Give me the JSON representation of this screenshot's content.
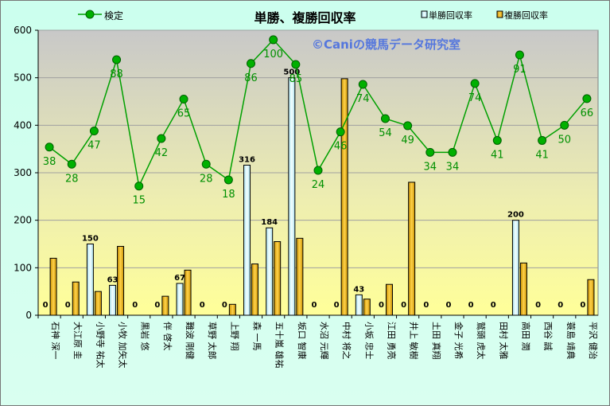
{
  "title": "単勝、複勝回収率",
  "watermark": "©Caniの競馬データ研究室",
  "chart_data": {
    "type": "bar",
    "categories": [
      "石神 深一",
      "大江原 圭",
      "小野寺 祐太",
      "小牧 加矢太",
      "黒岩 悠",
      "伴 啓太",
      "難波 剛健",
      "草野 太郎",
      "上野 翔",
      "森 一馬",
      "五十嵐 雄祐",
      "坂口 智康",
      "水沼 元輝",
      "中村 将之",
      "小坂 忠士",
      "江田 勇亮",
      "井上 敏樹",
      "土田 真翔",
      "金子 光希",
      "鷲頭 虎太",
      "田村 太雅",
      "高田 潤",
      "西谷 誠",
      "蓑島 靖典",
      "平沢 健治"
    ],
    "series": [
      {
        "name": "単勝回収率",
        "type": "bar",
        "color": "#dff6ff",
        "values": [
          0,
          0,
          150,
          63,
          0,
          0,
          67,
          0,
          0,
          316,
          184,
          500,
          0,
          0,
          43,
          0,
          0,
          0,
          0,
          0,
          0,
          200,
          0,
          0,
          0
        ]
      },
      {
        "name": "複勝回収率",
        "type": "bar",
        "color": "#ffc000",
        "values": [
          120,
          70,
          50,
          145,
          0,
          40,
          95,
          0,
          23,
          108,
          155,
          162,
          0,
          498,
          34,
          65,
          280,
          0,
          0,
          0,
          0,
          110,
          0,
          0,
          75
        ]
      },
      {
        "name": "検定",
        "type": "line",
        "color": "#00a000",
        "values": [
          354,
          318,
          388,
          538,
          272,
          372,
          455,
          318,
          285,
          530,
          580,
          528,
          305,
          386,
          486,
          414,
          399,
          343,
          343,
          488,
          368,
          548,
          368,
          400,
          456
        ],
        "labels": [
          38,
          28,
          47,
          88,
          15,
          42,
          65,
          28,
          18,
          86,
          100,
          85,
          24,
          46,
          74,
          54,
          49,
          34,
          34,
          74,
          41,
          91,
          41,
          50,
          66
        ]
      }
    ],
    "bar_labels": [
      "0",
      "0",
      "150",
      "63",
      "0",
      "0",
      "67",
      "0",
      "0",
      "316",
      "184",
      "500",
      "0",
      "0",
      "43",
      "0",
      "0",
      "0",
      "0",
      "0",
      "0",
      "200",
      "0",
      "0",
      "0"
    ],
    "ylim": [
      0,
      600
    ],
    "yticks": [
      "0",
      "100",
      "200",
      "300",
      "400",
      "500",
      "600"
    ],
    "grid": true,
    "legend_position": "top"
  }
}
